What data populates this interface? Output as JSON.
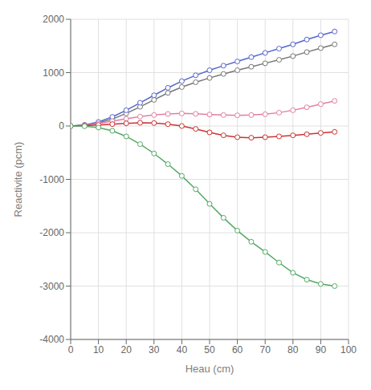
{
  "chart_data": {
    "type": "line",
    "x": [
      0,
      5,
      10,
      15,
      20,
      25,
      30,
      35,
      40,
      45,
      50,
      55,
      60,
      65,
      70,
      75,
      80,
      85,
      90,
      95
    ],
    "series": [
      {
        "color": "#777777",
        "values": [
          0,
          15,
          55,
          130,
          235,
          360,
          490,
          620,
          730,
          820,
          900,
          975,
          1045,
          1110,
          1175,
          1240,
          1310,
          1385,
          1460,
          1530
        ]
      },
      {
        "color": "#5566cc",
        "values": [
          0,
          20,
          75,
          170,
          295,
          435,
          575,
          715,
          840,
          950,
          1045,
          1130,
          1210,
          1290,
          1370,
          1450,
          1530,
          1620,
          1700,
          1770
        ]
      },
      {
        "color": "#e080a0",
        "values": [
          0,
          15,
          45,
          90,
          135,
          175,
          205,
          225,
          235,
          228,
          215,
          205,
          200,
          205,
          220,
          250,
          295,
          350,
          410,
          470
        ]
      },
      {
        "color": "#cc3333",
        "values": [
          0,
          8,
          20,
          35,
          50,
          60,
          55,
          35,
          0,
          -55,
          -120,
          -175,
          -210,
          -220,
          -210,
          -195,
          -175,
          -155,
          -130,
          -110
        ]
      },
      {
        "color": "#55aa66",
        "values": [
          0,
          -5,
          -30,
          -90,
          -195,
          -340,
          -515,
          -715,
          -935,
          -1185,
          -1460,
          -1720,
          -1960,
          -2170,
          -2360,
          -2560,
          -2750,
          -2880,
          -2960,
          -3000
        ]
      }
    ],
    "xlabel": "Heau (cm)",
    "ylabel": "Reactivite (pcm)",
    "xlim": [
      0,
      100
    ],
    "ylim": [
      -4000,
      2000
    ],
    "xticks": [
      0,
      10,
      20,
      30,
      40,
      50,
      60,
      70,
      80,
      90,
      100
    ],
    "yticks": [
      -4000,
      -3000,
      -2000,
      -1000,
      0,
      1000,
      2000
    ],
    "grid": true,
    "marker": "circle"
  }
}
